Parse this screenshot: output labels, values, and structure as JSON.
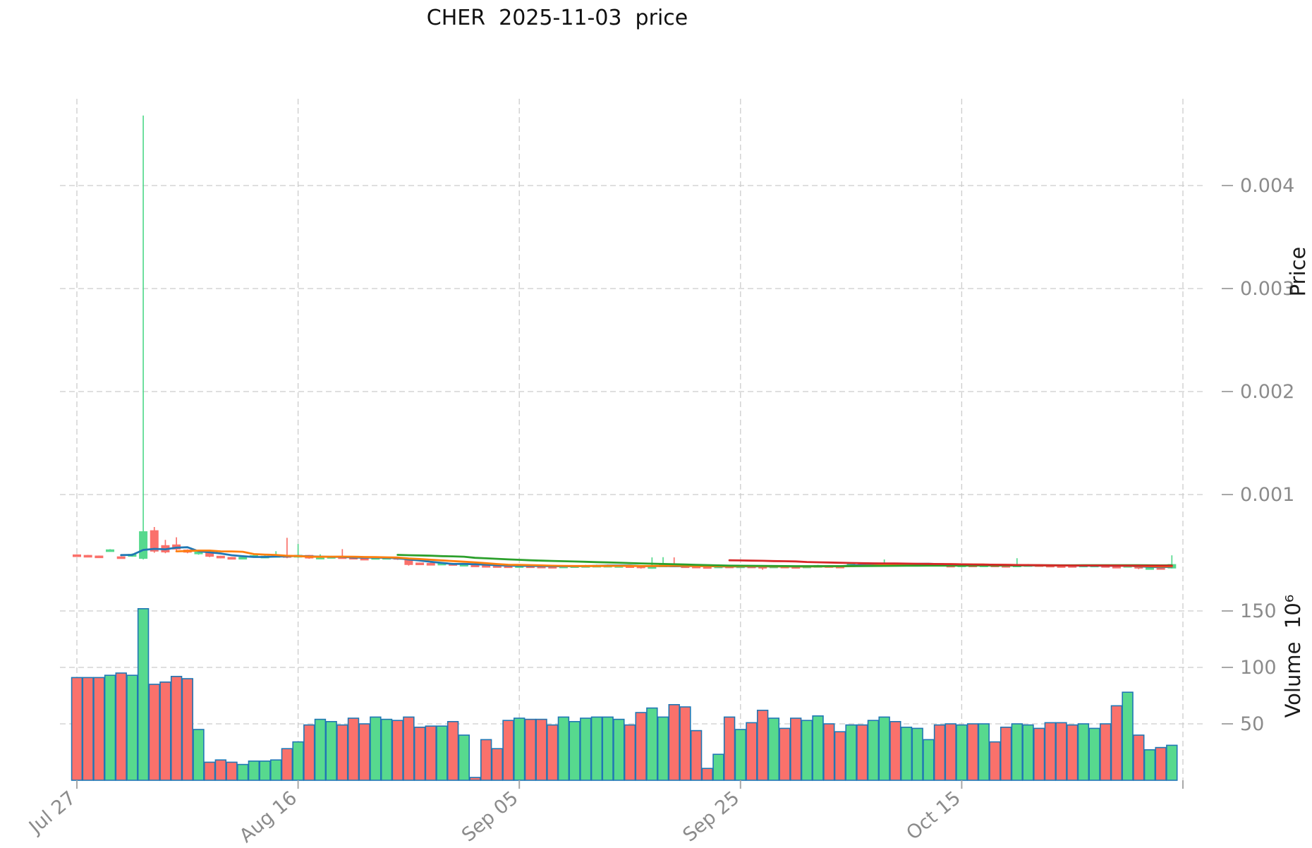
{
  "title": "CHER  2025-11-03  price",
  "axes": {
    "price_label": "Price",
    "volume_label": "Volume  10⁶",
    "price_tick_values_micro": [
      1000,
      2000,
      3000,
      4000
    ],
    "price_tick_labels": [
      "0.001",
      "0.002",
      "0.003",
      "0.004"
    ],
    "volume_tick_values": [
      50,
      100,
      150
    ],
    "volume_tick_labels": [
      "50",
      "100",
      "150"
    ],
    "x_ticks": [
      {
        "label": "Jul 27",
        "day_index": 0
      },
      {
        "label": "Aug 16",
        "day_index": 20
      },
      {
        "label": "Sep 05",
        "day_index": 40
      },
      {
        "label": "Sep 25",
        "day_index": 60
      },
      {
        "label": "Oct 15",
        "day_index": 80
      },
      {
        "label": "",
        "day_index": 100
      }
    ]
  },
  "colors": {
    "up": "#57d98e",
    "down": "#fa716b",
    "volume_bar_edge": "#2077b5",
    "ma_lines": [
      "#1f77b4",
      "#ff7f0e",
      "#2ca02c",
      "#d62728"
    ],
    "grid": "#cccccc",
    "tick_text": "#8b8b8b",
    "title_text": "#111111"
  },
  "chart_data": {
    "type": "candlestick",
    "subtype": "ohlc-with-volume-panel",
    "symbol": "CHER",
    "as_of_date": "2025-11-03",
    "title": "CHER  2025-11-03  price",
    "ylabel_price": "Price",
    "ylabel_volume": "Volume  10⁶",
    "price_unit": "micro (values are price × 1e-6)",
    "volume_unit": "millions of shares (axis shows ×10⁶)",
    "price_axis_ticks": [
      0.001,
      0.002,
      0.003,
      0.004
    ],
    "volume_axis_ticks": [
      50,
      100,
      150
    ],
    "grid": "dashed",
    "moving_average_periods": [
      5,
      10,
      30,
      60
    ],
    "dates": [
      "2025-07-27",
      "2025-07-28",
      "2025-07-29",
      "2025-07-30",
      "2025-07-31",
      "2025-08-01",
      "2025-08-02",
      "2025-08-03",
      "2025-08-04",
      "2025-08-05",
      "2025-08-06",
      "2025-08-07",
      "2025-08-08",
      "2025-08-09",
      "2025-08-10",
      "2025-08-11",
      "2025-08-12",
      "2025-08-13",
      "2025-08-14",
      "2025-08-15",
      "2025-08-16",
      "2025-08-17",
      "2025-08-18",
      "2025-08-19",
      "2025-08-20",
      "2025-08-21",
      "2025-08-22",
      "2025-08-23",
      "2025-08-24",
      "2025-08-25",
      "2025-08-26",
      "2025-08-27",
      "2025-08-28",
      "2025-08-29",
      "2025-08-30",
      "2025-08-31",
      "2025-09-01",
      "2025-09-02",
      "2025-09-03",
      "2025-09-04",
      "2025-09-05",
      "2025-09-06",
      "2025-09-07",
      "2025-09-08",
      "2025-09-09",
      "2025-09-10",
      "2025-09-11",
      "2025-09-12",
      "2025-09-13",
      "2025-09-14",
      "2025-09-15",
      "2025-09-16",
      "2025-09-17",
      "2025-09-18",
      "2025-09-19",
      "2025-09-20",
      "2025-09-21",
      "2025-09-22",
      "2025-09-23",
      "2025-09-24",
      "2025-09-25",
      "2025-09-26",
      "2025-09-27",
      "2025-09-28",
      "2025-09-29",
      "2025-09-30",
      "2025-10-01",
      "2025-10-02",
      "2025-10-03",
      "2025-10-04",
      "2025-10-05",
      "2025-10-06",
      "2025-10-07",
      "2025-10-08",
      "2025-10-09",
      "2025-10-10",
      "2025-10-11",
      "2025-10-12",
      "2025-10-13",
      "2025-10-14",
      "2025-10-15",
      "2025-10-16",
      "2025-10-17",
      "2025-10-18",
      "2025-10-19",
      "2025-10-20",
      "2025-10-21",
      "2025-10-22",
      "2025-10-23",
      "2025-10-24",
      "2025-10-25",
      "2025-10-26",
      "2025-10-27",
      "2025-10-28",
      "2025-10-29",
      "2025-10-30",
      "2025-10-31",
      "2025-11-01",
      "2025-11-02",
      "2025-11-03"
    ],
    "open_micro": [
      415,
      410,
      404,
      452,
      396,
      400,
      380,
      650,
      505,
      512,
      462,
      424,
      432,
      402,
      390,
      384,
      392,
      400,
      401,
      408,
      392,
      410,
      385,
      391,
      396,
      391,
      382,
      379,
      383,
      390,
      377,
      336,
      332,
      327,
      330,
      316,
      316,
      312,
      310,
      308,
      304,
      308,
      305,
      303,
      299,
      304,
      306,
      308,
      309,
      309,
      309,
      306,
      283,
      306,
      316,
      308,
      305,
      301,
      298,
      306,
      300,
      306,
      303,
      297,
      305,
      302,
      298,
      304,
      310,
      305,
      300,
      330,
      321,
      325,
      329,
      321,
      323,
      317,
      331,
      314,
      310,
      316,
      310,
      316,
      312,
      308,
      315,
      319,
      314,
      310,
      311,
      310,
      310,
      311,
      304,
      299,
      312,
      285,
      291,
      286
    ],
    "high_micro": [
      420,
      414,
      408,
      470,
      400,
      428,
      4680,
      685,
      560,
      585,
      468,
      452,
      436,
      406,
      394,
      396,
      414,
      410,
      450,
      580,
      520,
      414,
      420,
      405,
      470,
      396,
      388,
      394,
      396,
      393,
      380,
      340,
      338,
      340,
      336,
      330,
      320,
      318,
      316,
      314,
      316,
      314,
      310,
      308,
      312,
      315,
      317,
      319,
      320,
      318,
      313,
      310,
      390,
      392,
      390,
      314,
      310,
      306,
      312,
      311,
      313,
      312,
      308,
      312,
      310,
      307,
      312,
      317,
      315,
      310,
      336,
      335,
      333,
      370,
      334,
      332,
      334,
      336,
      335,
      319,
      322,
      320,
      323,
      320,
      316,
      382,
      326,
      323,
      318,
      314,
      317,
      321,
      319,
      315,
      308,
      318,
      315,
      297,
      296,
      410
    ],
    "low_micro": [
      402,
      396,
      390,
      446,
      384,
      396,
      370,
      435,
      430,
      455,
      430,
      416,
      392,
      380,
      378,
      380,
      388,
      394,
      396,
      382,
      386,
      376,
      380,
      386,
      384,
      374,
      372,
      374,
      379,
      366,
      310,
      318,
      320,
      322,
      316,
      310,
      306,
      302,
      300,
      298,
      300,
      298,
      296,
      294,
      295,
      300,
      302,
      304,
      305,
      304,
      296,
      281,
      280,
      302,
      300,
      298,
      294,
      292,
      294,
      295,
      296,
      295,
      270,
      292,
      294,
      292,
      294,
      300,
      298,
      294,
      296,
      316,
      316,
      320,
      316,
      316,
      318,
      312,
      307,
      304,
      305,
      304,
      305,
      304,
      300,
      304,
      311,
      307,
      303,
      299,
      300,
      306,
      304,
      297,
      292,
      295,
      275,
      280,
      279,
      282
    ],
    "close_micro": [
      408,
      402,
      397,
      464,
      390,
      420,
      640,
      450,
      442,
      470,
      440,
      446,
      400,
      386,
      383,
      391,
      408,
      402,
      409,
      391,
      411,
      383,
      392,
      399,
      390,
      381,
      378,
      389,
      390,
      372,
      320,
      328,
      326,
      334,
      322,
      323,
      311,
      308,
      306,
      305,
      310,
      304,
      301,
      299,
      306,
      309,
      311,
      313,
      313,
      311,
      302,
      289,
      308,
      316,
      307,
      304,
      300,
      298,
      306,
      300,
      307,
      300,
      296,
      306,
      300,
      298,
      306,
      311,
      304,
      300,
      330,
      322,
      327,
      331,
      322,
      326,
      328,
      331,
      313,
      310,
      317,
      310,
      317,
      310,
      306,
      316,
      320,
      313,
      309,
      305,
      305,
      315,
      315,
      303,
      299,
      312,
      285,
      291,
      286,
      321
    ],
    "volume_millions": [
      91,
      91,
      91,
      93,
      95,
      93,
      152,
      85,
      87,
      92,
      90,
      45,
      16,
      18,
      16,
      14,
      17,
      17,
      18,
      28,
      34,
      49,
      54,
      52,
      49,
      55,
      50,
      56,
      54,
      53,
      56,
      47,
      48,
      48,
      52,
      40,
      2.5,
      36,
      28,
      53,
      55,
      54,
      54,
      49,
      56,
      52,
      55,
      56,
      56,
      54,
      49,
      60,
      64,
      56,
      67,
      65,
      44,
      10.5,
      23,
      56,
      45,
      51,
      62,
      55,
      46,
      55,
      53,
      57,
      50,
      43,
      49,
      49,
      53,
      56,
      52,
      47,
      46,
      36,
      49,
      50,
      49,
      50,
      50,
      34,
      47,
      50,
      49,
      46,
      51,
      51,
      49,
      50,
      46,
      50,
      66,
      78,
      40,
      27,
      29,
      31
    ]
  }
}
